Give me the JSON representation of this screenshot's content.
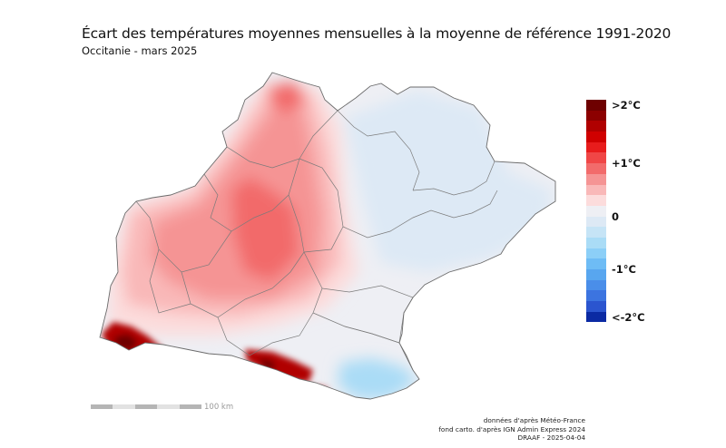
{
  "title": "Écart des températures moyennes mensuelles à la moyenne de référence 1991-2020",
  "subtitle": "Occitanie - mars 2025",
  "legend": {
    "colors": [
      "#6e0000",
      "#8c0000",
      "#b00000",
      "#d00000",
      "#e81c1c",
      "#f04646",
      "#f26b6b",
      "#f59494",
      "#f9b8b8",
      "#fcdcdc",
      "#eeeff4",
      "#dde9f5",
      "#c6e4f6",
      "#aadcf6",
      "#8ccff7",
      "#6ebcf5",
      "#58a6ef",
      "#4a8ee9",
      "#3c74e0",
      "#2b55cf",
      "#0b2aa3"
    ],
    "labels": [
      {
        "text": ">2°C",
        "index": 0
      },
      {
        "text": "+1°C",
        "index": 6
      },
      {
        "text": "0",
        "index": 11
      },
      {
        "text": "-1°C",
        "index": 16
      },
      {
        "text": "<-2°C",
        "index": 21
      }
    ]
  },
  "scale": {
    "label": "100 km",
    "colors": [
      "#b5b5b5",
      "#e2e2e2",
      "#b5b5b5",
      "#e2e2e2",
      "#b5b5b5"
    ]
  },
  "credits": {
    "line1": "données d'après Météo-France",
    "line2": "fond carto. d'après IGN Admin Express 2024",
    "line3": "DRAAF - 2025-04-04"
  },
  "map": {
    "region": "Occitanie",
    "colors": {
      "outline": "#6b6b6b",
      "dept_border": "#7b7b7b",
      "hot_strong": "#f26b6b",
      "hot_mid": "#f59494",
      "hot_light": "#f9b8b8",
      "warm_faint": "#fcdcdc",
      "neutral": "#eeeff4",
      "cool": "#dde9f5",
      "cold": "#aadcf6",
      "extreme": "#b00000",
      "extreme_dark": "#6e0000"
    }
  }
}
